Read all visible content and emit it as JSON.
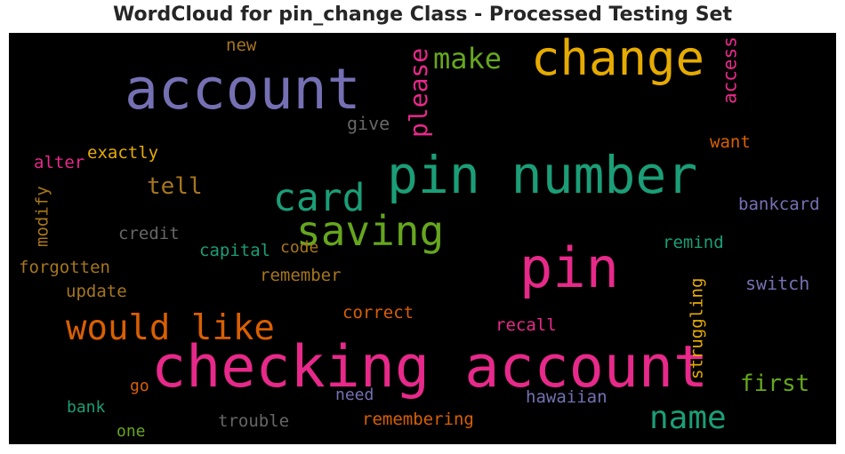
{
  "chart_data": {
    "type": "wordcloud",
    "title": "WordCloud for pin_change Class - Processed Testing Set",
    "background": "#000000",
    "words": [
      {
        "text": "account",
        "weight": 0.9,
        "color": "#7570b3"
      },
      {
        "text": "change",
        "weight": 0.77,
        "color": "#e6ab02"
      },
      {
        "text": "pin number",
        "weight": 0.83,
        "color": "#1b9e77"
      },
      {
        "text": "pin",
        "weight": 0.88,
        "color": "#e7298a"
      },
      {
        "text": "checking account",
        "weight": 0.93,
        "color": "#e7298a"
      },
      {
        "text": "card",
        "weight": 0.62,
        "color": "#1b9e77"
      },
      {
        "text": "saving",
        "weight": 0.66,
        "color": "#66a61e"
      },
      {
        "text": "would like",
        "weight": 0.56,
        "color": "#d95f02"
      },
      {
        "text": "name",
        "weight": 0.52,
        "color": "#1b9e77"
      },
      {
        "text": "make",
        "weight": 0.46,
        "color": "#66a61e"
      },
      {
        "text": "please",
        "weight": 0.4,
        "color": "#e7298a"
      },
      {
        "text": "tell",
        "weight": 0.37,
        "color": "#a6761d"
      },
      {
        "text": "first",
        "weight": 0.37,
        "color": "#66a61e"
      },
      {
        "text": "access",
        "weight": 0.3,
        "color": "#e7298a"
      },
      {
        "text": "new",
        "weight": 0.27,
        "color": "#a6761d"
      },
      {
        "text": "give",
        "weight": 0.28,
        "color": "#666666"
      },
      {
        "text": "want",
        "weight": 0.27,
        "color": "#d95f02"
      },
      {
        "text": "exactly",
        "weight": 0.27,
        "color": "#e6ab02"
      },
      {
        "text": "alter",
        "weight": 0.27,
        "color": "#e7298a"
      },
      {
        "text": "modify",
        "weight": 0.27,
        "color": "#a6761d"
      },
      {
        "text": "bankcard",
        "weight": 0.27,
        "color": "#7570b3"
      },
      {
        "text": "credit",
        "weight": 0.27,
        "color": "#666666"
      },
      {
        "text": "capital",
        "weight": 0.27,
        "color": "#1b9e77"
      },
      {
        "text": "code",
        "weight": 0.25,
        "color": "#a6761d"
      },
      {
        "text": "remind",
        "weight": 0.27,
        "color": "#1b9e77"
      },
      {
        "text": "forgotten",
        "weight": 0.27,
        "color": "#a6761d"
      },
      {
        "text": "remember",
        "weight": 0.27,
        "color": "#a6761d"
      },
      {
        "text": "switch",
        "weight": 0.28,
        "color": "#7570b3"
      },
      {
        "text": "update",
        "weight": 0.27,
        "color": "#a6761d"
      },
      {
        "text": "struggling",
        "weight": 0.27,
        "color": "#e6ab02"
      },
      {
        "text": "correct",
        "weight": 0.27,
        "color": "#d95f02"
      },
      {
        "text": "recall",
        "weight": 0.27,
        "color": "#e7298a"
      },
      {
        "text": "go",
        "weight": 0.26,
        "color": "#d95f02"
      },
      {
        "text": "need",
        "weight": 0.26,
        "color": "#7570b3"
      },
      {
        "text": "hawaiian",
        "weight": 0.27,
        "color": "#7570b3"
      },
      {
        "text": "bank",
        "weight": 0.26,
        "color": "#1b9e77"
      },
      {
        "text": "trouble",
        "weight": 0.27,
        "color": "#666666"
      },
      {
        "text": "remembering",
        "weight": 0.27,
        "color": "#d95f02"
      },
      {
        "text": "one",
        "weight": 0.25,
        "color": "#66a61e"
      }
    ]
  }
}
